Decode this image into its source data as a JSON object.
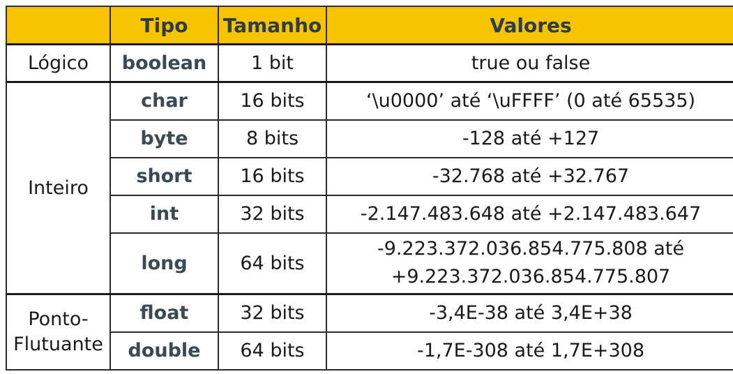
{
  "header": {
    "blank": "",
    "tipo": "Tipo",
    "tamanho": "Tamanho",
    "valores": "Valores"
  },
  "groups": [
    {
      "category": "Lógico",
      "rows": [
        {
          "tipo": "boolean",
          "tamanho": "1 bit",
          "valores": "true ou false"
        }
      ]
    },
    {
      "category": "Inteiro",
      "rows": [
        {
          "tipo": "char",
          "tamanho": "16 bits",
          "valores": "‘\\u0000’ até ‘\\uFFFF’ (0 até 65535)"
        },
        {
          "tipo": "byte",
          "tamanho": "8 bits",
          "valores": "-128 até +127"
        },
        {
          "tipo": "short",
          "tamanho": "16 bits",
          "valores": "-32.768 até +32.767"
        },
        {
          "tipo": "int",
          "tamanho": "32 bits",
          "valores": "-2.147.483.648 até +2.147.483.647"
        },
        {
          "tipo": "long",
          "tamanho": "64 bits",
          "valores_line1": "-9.223.372.036.854.775.808 até",
          "valores_line2": "+9.223.372.036.854.775.807"
        }
      ]
    },
    {
      "category_line1": "Ponto-",
      "category_line2": "Flutuante",
      "rows": [
        {
          "tipo": "float",
          "tamanho": "32 bits",
          "valores": "-3,4E-38 até 3,4E+38"
        },
        {
          "tipo": "double",
          "tamanho": "64 bits",
          "valores": "-1,7E-308 até 1,7E+308"
        }
      ]
    }
  ]
}
